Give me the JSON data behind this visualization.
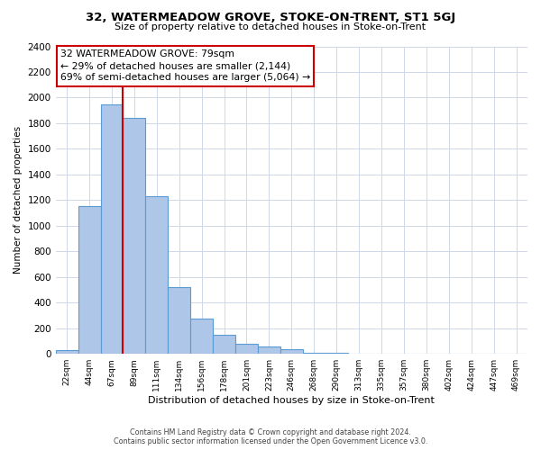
{
  "title": "32, WATERMEADOW GROVE, STOKE-ON-TRENT, ST1 5GJ",
  "subtitle": "Size of property relative to detached houses in Stoke-on-Trent",
  "xlabel": "Distribution of detached houses by size in Stoke-on-Trent",
  "ylabel": "Number of detached properties",
  "footer_line1": "Contains HM Land Registry data © Crown copyright and database right 2024.",
  "footer_line2": "Contains public sector information licensed under the Open Government Licence v3.0.",
  "bin_labels": [
    "22sqm",
    "44sqm",
    "67sqm",
    "89sqm",
    "111sqm",
    "134sqm",
    "156sqm",
    "178sqm",
    "201sqm",
    "223sqm",
    "246sqm",
    "268sqm",
    "290sqm",
    "313sqm",
    "335sqm",
    "357sqm",
    "380sqm",
    "402sqm",
    "424sqm",
    "447sqm",
    "469sqm"
  ],
  "bar_heights": [
    30,
    1150,
    1950,
    1840,
    1230,
    520,
    275,
    150,
    80,
    55,
    40,
    10,
    5,
    3,
    2,
    1,
    0,
    0,
    0,
    0,
    0
  ],
  "bar_color": "#aec6e8",
  "bar_edge_color": "#5b9bd5",
  "property_line_label": "32 WATERMEADOW GROVE: 79sqm",
  "annotation_line1": "← 29% of detached houses are smaller (2,144)",
  "annotation_line2": "69% of semi-detached houses are larger (5,064) →",
  "annotation_box_color": "#ffffff",
  "annotation_box_edge": "#cc0000",
  "vline_color": "#cc0000",
  "vline_x": 2.5,
  "ylim": [
    0,
    2400
  ],
  "yticks": [
    0,
    200,
    400,
    600,
    800,
    1000,
    1200,
    1400,
    1600,
    1800,
    2000,
    2200,
    2400
  ],
  "background_color": "#ffffff",
  "grid_color": "#d0d8e8"
}
